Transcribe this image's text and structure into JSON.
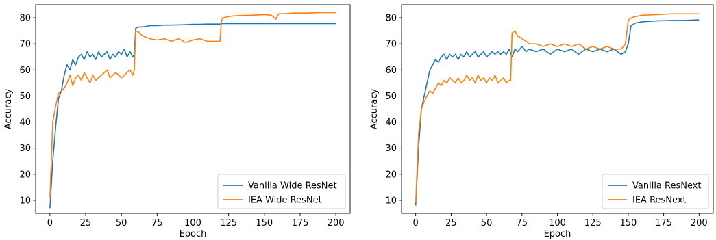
{
  "chart_data": [
    {
      "type": "line",
      "xlabel": "Epoch",
      "ylabel": "Accuracy",
      "xlim": [
        -10,
        210
      ],
      "ylim": [
        5,
        85
      ],
      "xticks": [
        0,
        25,
        50,
        75,
        100,
        125,
        150,
        175,
        200
      ],
      "yticks": [
        10,
        20,
        30,
        40,
        50,
        60,
        70,
        80
      ],
      "grid": false,
      "legend_position": "lower-right",
      "series": [
        {
          "name": "Vanilla Wide ResNet",
          "color": "#1f77b4",
          "x": [
            0,
            2,
            4,
            6,
            8,
            10,
            12,
            14,
            16,
            18,
            20,
            22,
            24,
            26,
            28,
            30,
            32,
            34,
            36,
            38,
            40,
            42,
            44,
            46,
            48,
            50,
            52,
            54,
            56,
            58,
            59,
            60,
            62,
            65,
            70,
            75,
            80,
            85,
            90,
            95,
            100,
            105,
            110,
            115,
            119,
            120,
            121,
            125,
            130,
            140,
            150,
            160,
            170,
            180,
            190,
            200
          ],
          "y": [
            7,
            25,
            38,
            49,
            52,
            58,
            62,
            60,
            64,
            62,
            65,
            66,
            64,
            67,
            65,
            66,
            64,
            67,
            65,
            66,
            67,
            64,
            66,
            65,
            67,
            66,
            68,
            65,
            67,
            65,
            66,
            76,
            76.5,
            76.5,
            77,
            77,
            77.2,
            77.2,
            77.3,
            77.4,
            77.5,
            77.5,
            77.6,
            77.6,
            77.6,
            77.8,
            77.8,
            77.8,
            77.8,
            77.8,
            77.8,
            77.8,
            77.8,
            77.8,
            77.8,
            77.8
          ]
        },
        {
          "name": "IEA Wide ResNet",
          "color": "#ff7f0e",
          "x": [
            0,
            2,
            4,
            6,
            8,
            10,
            12,
            14,
            16,
            18,
            20,
            22,
            24,
            26,
            28,
            30,
            32,
            34,
            36,
            38,
            40,
            42,
            44,
            46,
            48,
            50,
            52,
            54,
            56,
            58,
            59,
            60,
            62,
            65,
            70,
            75,
            80,
            85,
            90,
            95,
            100,
            105,
            110,
            115,
            119,
            120,
            121,
            125,
            130,
            140,
            150,
            155,
            158,
            160,
            165,
            170,
            180,
            190,
            200
          ],
          "y": [
            11,
            40,
            46,
            51,
            52,
            53,
            55,
            58,
            54,
            57,
            58,
            56,
            59,
            57,
            55,
            58,
            56,
            57,
            58,
            59,
            60,
            57,
            58,
            59,
            58,
            57,
            58,
            59,
            60,
            58,
            60,
            75,
            74.5,
            73,
            72,
            71.5,
            72,
            71,
            72,
            70.5,
            71.5,
            72,
            71,
            71,
            71,
            79,
            80,
            80.5,
            80.8,
            81,
            81.2,
            81,
            79.5,
            81.5,
            81.6,
            81.8,
            81.8,
            82,
            82
          ]
        }
      ]
    },
    {
      "type": "line",
      "xlabel": "Epoch",
      "ylabel": "Accuracy",
      "xlim": [
        -10,
        210
      ],
      "ylim": [
        5,
        85
      ],
      "xticks": [
        0,
        25,
        50,
        75,
        100,
        125,
        150,
        175,
        200
      ],
      "yticks": [
        10,
        20,
        30,
        40,
        50,
        60,
        70,
        80
      ],
      "grid": false,
      "legend_position": "lower-right",
      "series": [
        {
          "name": "Vanilla ResNext",
          "color": "#1f77b4",
          "x": [
            0,
            2,
            4,
            6,
            8,
            10,
            12,
            14,
            16,
            18,
            20,
            22,
            24,
            26,
            28,
            30,
            32,
            34,
            36,
            38,
            40,
            42,
            44,
            46,
            48,
            50,
            52,
            54,
            56,
            58,
            60,
            62,
            64,
            66,
            68,
            70,
            72,
            75,
            78,
            80,
            85,
            90,
            95,
            100,
            105,
            110,
            115,
            120,
            125,
            130,
            135,
            140,
            145,
            148,
            150,
            152,
            155,
            160,
            170,
            180,
            190,
            200
          ],
          "y": [
            8,
            30,
            45,
            50,
            55,
            60,
            62,
            64,
            63,
            65,
            66,
            64,
            66,
            65,
            66,
            64,
            66,
            65,
            67,
            65,
            66,
            67,
            65,
            66,
            67,
            65,
            66,
            67,
            66,
            67,
            66,
            67,
            66,
            68,
            65,
            68,
            67,
            69,
            67,
            68,
            67,
            68,
            66,
            68,
            67,
            68,
            66,
            68,
            67,
            68,
            67,
            68,
            66,
            67,
            70,
            77,
            78,
            78.5,
            78.8,
            79,
            79,
            79.2
          ]
        },
        {
          "name": "IEA ResNext",
          "color": "#ff7f0e",
          "x": [
            0,
            2,
            4,
            6,
            8,
            10,
            12,
            14,
            16,
            18,
            20,
            22,
            24,
            26,
            28,
            30,
            32,
            34,
            36,
            38,
            40,
            42,
            44,
            46,
            48,
            50,
            52,
            54,
            56,
            58,
            60,
            62,
            64,
            66,
            67,
            68,
            70,
            72,
            75,
            78,
            80,
            85,
            90,
            95,
            100,
            105,
            110,
            115,
            120,
            125,
            130,
            135,
            140,
            145,
            148,
            150,
            152,
            155,
            160,
            170,
            180,
            190,
            200
          ],
          "y": [
            9,
            35,
            45,
            48,
            50,
            52,
            51,
            53,
            55,
            54,
            56,
            55,
            57,
            56,
            55,
            57,
            55,
            56,
            58,
            56,
            57,
            55,
            58,
            56,
            57,
            55,
            57,
            56,
            58,
            55,
            56,
            57,
            55,
            56,
            56,
            74,
            75,
            73,
            72,
            71,
            70,
            70,
            69,
            70,
            69,
            70,
            69,
            70,
            68,
            69,
            68,
            69,
            68,
            68,
            70,
            79,
            80,
            80.5,
            81,
            81.2,
            81.5,
            81.5,
            81.5
          ]
        }
      ]
    }
  ]
}
